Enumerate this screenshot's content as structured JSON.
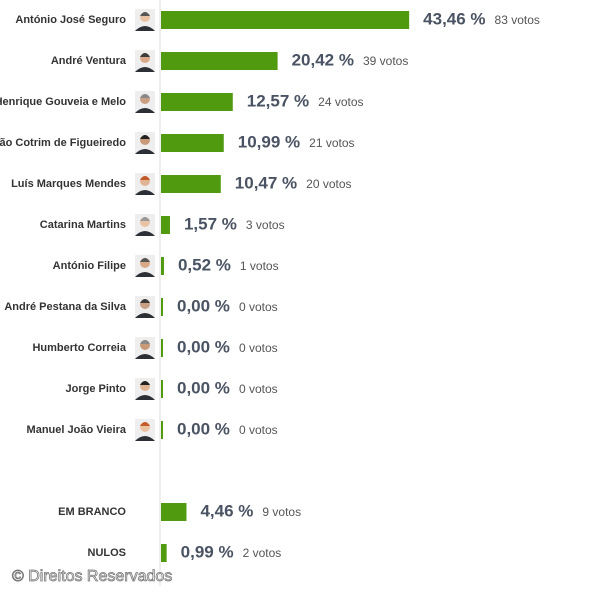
{
  "chart_data": [
    {
      "type": "bar",
      "categories": [
        "António José Seguro",
        "André Ventura",
        "Henrique Gouveia e Melo",
        "João Cotrim de Figueiredo",
        "Luís Marques Mendes",
        "Catarina Martins",
        "António Filipe",
        "André Pestana da Silva",
        "Humberto Correia",
        "Jorge Pinto",
        "Manuel João Vieira"
      ],
      "values": [
        43.46,
        20.42,
        12.57,
        10.99,
        10.47,
        1.57,
        0.52,
        0,
        0,
        0,
        0
      ],
      "value_labels": [
        "43,46 %",
        "20,42 %",
        "12,57 %",
        "10,99 %",
        "10,47 %",
        "1,57 %",
        "0,52 %",
        "0,00 %",
        "0,00 %",
        "0,00 %",
        "0,00 %"
      ],
      "vote_labels": [
        "83 votos",
        "39 votos",
        "24 votos",
        "21 votos",
        "20 votos",
        "3 votos",
        "1 votos",
        "0 votos",
        "0 votos",
        "0 votos",
        "0 votos"
      ],
      "color": "#4f9a0e",
      "xlim": [
        0,
        100
      ]
    },
    {
      "type": "bar",
      "categories": [
        "EM BRANCO",
        "NULOS"
      ],
      "values": [
        4.46,
        0.99
      ],
      "value_labels": [
        "4,46 %",
        "0,99 %"
      ],
      "vote_labels": [
        "9 votos",
        "2 votos"
      ],
      "color": "#4f9a0e",
      "xlim": [
        0,
        100
      ]
    }
  ],
  "footer": "© Direitos Reservados"
}
